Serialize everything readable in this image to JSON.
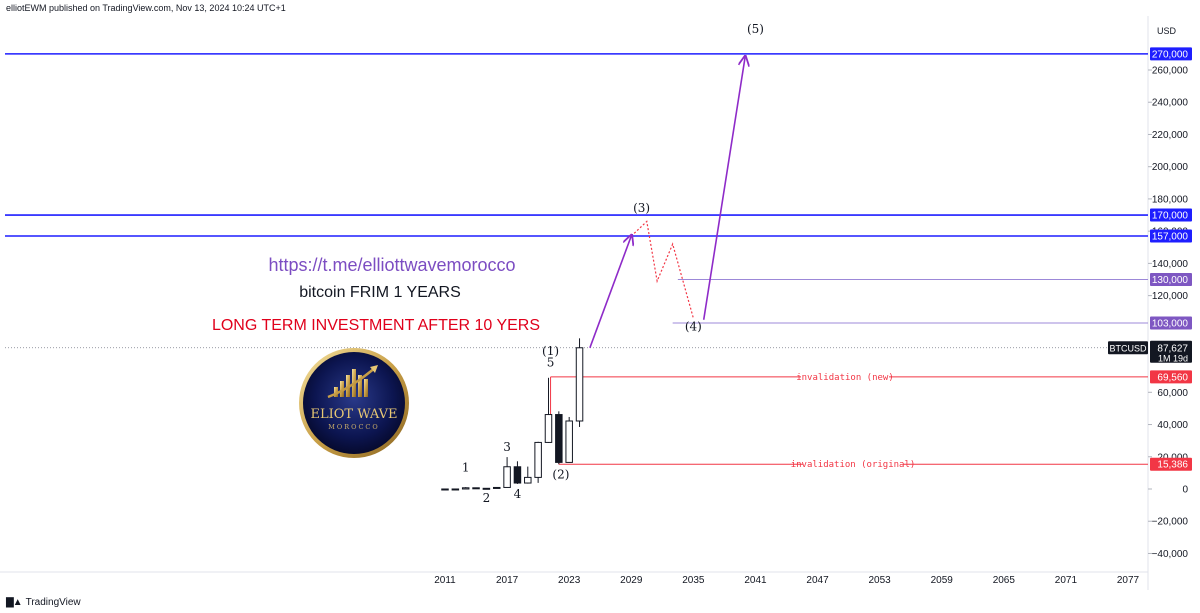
{
  "header": {
    "publisher": "elliotEWM published on TradingView.com, Nov 13, 2024 10:24 UTC+1"
  },
  "footer": {
    "brand": "TradingView"
  },
  "currency": "USD",
  "logo": {
    "line1": "ELIOT WAVE",
    "line2": "MOROCCO"
  },
  "annotations": {
    "link": "https://t.me/elliottwavemorocco",
    "subtitle": "bitcoin FRIM 1 YEARS",
    "headline": "LONG TERM INVESTMENT AFTER 10 YERS",
    "invalidation_new": "invalidation (new)",
    "invalidation_original": "invalidation (original)"
  },
  "colors": {
    "purple": "#8e2bc8",
    "blue": "#1e1eff",
    "red": "#f23645",
    "link": "#7c4dc2"
  },
  "chart_data": {
    "type": "candlestick",
    "symbol": "BTCUSD",
    "interval": "1M 19d",
    "last_price": 87627,
    "last_price_label": "87,627",
    "x_ticks": [
      "2011",
      "2017",
      "2023",
      "2029",
      "2035",
      "2041",
      "2047",
      "2053",
      "2059",
      "2065",
      "2071",
      "2077"
    ],
    "y_ticks": [
      {
        "value": 260000,
        "label": "260,000"
      },
      {
        "value": 240000,
        "label": "240,000"
      },
      {
        "value": 220000,
        "label": "220,000"
      },
      {
        "value": 200000,
        "label": "200,000"
      },
      {
        "value": 180000,
        "label": "180,000"
      },
      {
        "value": 160000,
        "label": "160,000"
      },
      {
        "value": 140000,
        "label": "140,000"
      },
      {
        "value": 120000,
        "label": "120,000"
      },
      {
        "value": 60000,
        "label": "60,000"
      },
      {
        "value": 40000,
        "label": "40,000"
      },
      {
        "value": 20000,
        "label": "20,000"
      },
      {
        "value": 0,
        "label": "0"
      },
      {
        "value": -20000,
        "label": "−20,000"
      },
      {
        "value": -40000,
        "label": "−40,000"
      }
    ],
    "ylim": [
      -45000,
      285000
    ],
    "xlim": [
      2007.5,
      2079.5
    ],
    "candles": [
      {
        "t": 2011,
        "o": 1,
        "h": 30,
        "l": 0,
        "c": 5
      },
      {
        "t": 2012,
        "o": 5,
        "h": 300,
        "l": 4,
        "c": 13
      },
      {
        "t": 2013,
        "o": 13,
        "h": 1150,
        "l": 13,
        "c": 750
      },
      {
        "t": 2014,
        "o": 750,
        "h": 950,
        "l": 300,
        "c": 320
      },
      {
        "t": 2015,
        "o": 320,
        "h": 500,
        "l": 170,
        "c": 430
      },
      {
        "t": 2016,
        "o": 430,
        "h": 980,
        "l": 360,
        "c": 960
      },
      {
        "t": 2017,
        "o": 960,
        "h": 19800,
        "l": 880,
        "c": 13800
      },
      {
        "t": 2018,
        "o": 13800,
        "h": 17200,
        "l": 3150,
        "c": 3700
      },
      {
        "t": 2019,
        "o": 3700,
        "h": 13900,
        "l": 3350,
        "c": 7200
      },
      {
        "t": 2020,
        "o": 7200,
        "h": 29300,
        "l": 3800,
        "c": 28900
      },
      {
        "t": 2021,
        "o": 28900,
        "h": 69000,
        "l": 28700,
        "c": 46200
      },
      {
        "t": 2022,
        "o": 46200,
        "h": 48200,
        "l": 15400,
        "c": 16500
      },
      {
        "t": 2023,
        "o": 16500,
        "h": 44700,
        "l": 16400,
        "c": 42200
      },
      {
        "t": 2024,
        "o": 42200,
        "h": 93500,
        "l": 38500,
        "c": 87627
      }
    ],
    "horizontal_levels": [
      {
        "value": 270000,
        "label": "270,000",
        "color": "#1e1eff",
        "label_bg": "#1e1eff"
      },
      {
        "value": 170000,
        "label": "170,000",
        "color": "#1e1eff",
        "label_bg": "#1e1eff"
      },
      {
        "value": 157000,
        "label": "157,000",
        "color": "#1e1eff",
        "label_bg": "#1e1eff"
      },
      {
        "value": 130000,
        "label": "130,000",
        "color": "#9c88d8",
        "label_bg": "#7e57c2"
      },
      {
        "value": 103000,
        "label": "103,000",
        "color": "#9c88d8",
        "label_bg": "#7e57c2"
      },
      {
        "value": 69560,
        "label": "69,560",
        "color": "#f23645",
        "label_bg": "#f23645"
      },
      {
        "value": 15386,
        "label": "15,386",
        "color": "#f23645",
        "label_bg": "#f23645"
      }
    ],
    "wave_labels": [
      {
        "text": "1",
        "t": 2013.0,
        "v": 11000
      },
      {
        "text": "2",
        "t": 2015.0,
        "v": -8000
      },
      {
        "text": "3",
        "t": 2017.0,
        "v": 23500
      },
      {
        "text": "4",
        "t": 2018.0,
        "v": -5500
      },
      {
        "text": "5",
        "t": 2021.2,
        "v": 76000
      },
      {
        "text": "(1)",
        "t": 2021.2,
        "v": 83000
      },
      {
        "text": "(2)",
        "t": 2022.2,
        "v": 6500
      },
      {
        "text": "(3)",
        "t": 2030.0,
        "v": 172000
      },
      {
        "text": "(4)",
        "t": 2035.0,
        "v": 98500
      },
      {
        "text": "(5)",
        "t": 2041.0,
        "v": 283000
      }
    ],
    "projection_solid": [
      {
        "from": [
          2025.0,
          87627
        ],
        "to": [
          2029.0,
          157000
        ]
      },
      {
        "from": [
          2036.0,
          105000
        ],
        "to": [
          2040.0,
          268000
        ]
      }
    ],
    "projection_dotted": [
      [
        2029.0,
        157000
      ],
      [
        2030.5,
        166000
      ],
      [
        2031.5,
        129000
      ],
      [
        2033.0,
        152000
      ],
      [
        2035.0,
        106000
      ]
    ],
    "invalidation_new_span": [
      2024.0,
      2078.0
    ],
    "invalidation_original_span": [
      2022.0,
      2078.0
    ],
    "level_130k_span": [
      2033.5,
      2078.0
    ],
    "level_103k_span": [
      2033.0,
      2078.0
    ]
  }
}
